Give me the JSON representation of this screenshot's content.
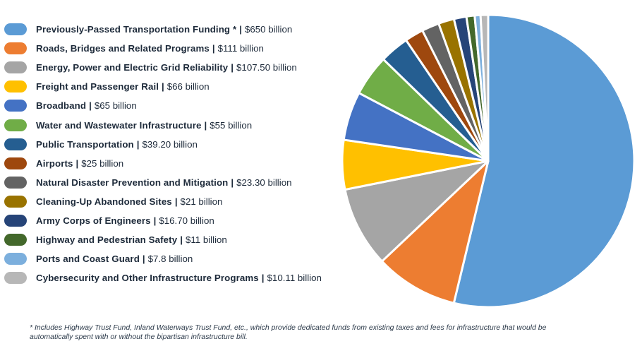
{
  "chart_data": {
    "type": "pie",
    "slices": [
      {
        "label": "Previously-Passed Transportation Funding *",
        "value_text": "$650 billion",
        "value": 650,
        "color": "#5b9bd5"
      },
      {
        "label": "Roads, Bridges and Related Programs",
        "value_text": "$111 billion",
        "value": 111,
        "color": "#ed7d31"
      },
      {
        "label": "Energy, Power and Electric Grid Reliability",
        "value_text": "$107.50 billion",
        "value": 107.5,
        "color": "#a5a5a5"
      },
      {
        "label": "Freight and Passenger Rail",
        "value_text": "$66 billion",
        "value": 66,
        "color": "#ffc000"
      },
      {
        "label": "Broadband",
        "value_text": "$65 billion",
        "value": 65,
        "color": "#4472c4"
      },
      {
        "label": "Water and Wastewater Infrastructure",
        "value_text": "$55 billion",
        "value": 55,
        "color": "#70ad47"
      },
      {
        "label": "Public Transportation",
        "value_text": "$39.20 billion",
        "value": 39.2,
        "color": "#255e91"
      },
      {
        "label": "Airports",
        "value_text": "$25 billion",
        "value": 25,
        "color": "#9e480e"
      },
      {
        "label": "Natural Disaster Prevention and Mitigation",
        "value_text": "$23.30 billion",
        "value": 23.3,
        "color": "#636363"
      },
      {
        "label": "Cleaning-Up Abandoned Sites",
        "value_text": "$21 billion",
        "value": 21,
        "color": "#997300"
      },
      {
        "label": "Army Corps of Engineers",
        "value_text": "$16.70 billion",
        "value": 16.7,
        "color": "#264478"
      },
      {
        "label": "Highway and Pedestrian Safety",
        "value_text": "$11 billion",
        "value": 11,
        "color": "#43682b"
      },
      {
        "label": "Ports and Coast Guard",
        "value_text": "$7.8 billion",
        "value": 7.8,
        "color": "#7cafdd"
      },
      {
        "label": "Cybersecurity and Other Infrastructure Programs",
        "value_text": "$10.11 billion",
        "value": 10.11,
        "color": "#b7b7b7"
      }
    ],
    "legend_position": "left",
    "start_angle": "top",
    "direction": "clockwise"
  },
  "footnote": {
    "marker": "*",
    "text": "Includes Highway Trust Fund, Inland Waterways Trust Fund, etc., which provide dedicated funds from existing taxes and fees for infrastructure that would be automatically spent with or without the bipartisan infrastructure bill."
  }
}
